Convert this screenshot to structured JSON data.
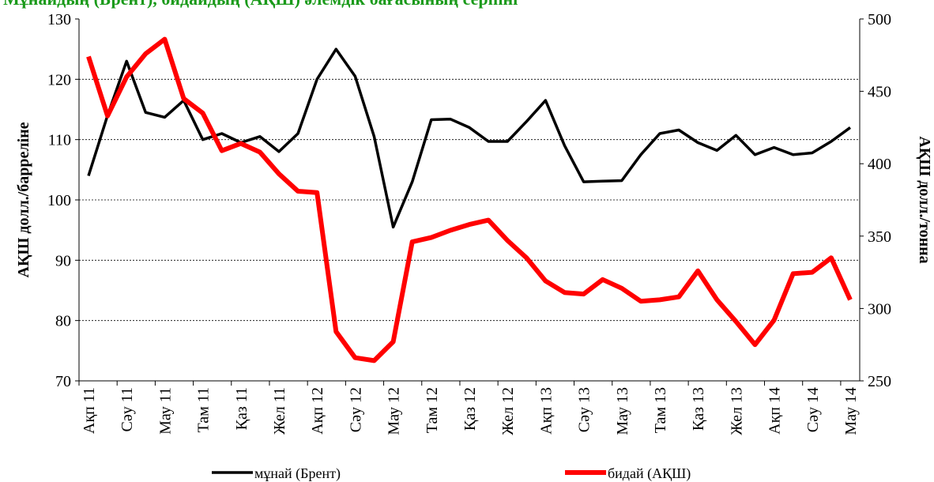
{
  "chart_data": {
    "type": "line",
    "title": "Мұнайдың (Брент), бидайдың (АҚШ) әлемдік бағасының серпіні",
    "ylabel": "АҚШ долл./барреліне",
    "y2label": "АҚШ долл./тонна",
    "categories": [
      "Ақп 11",
      null,
      "Сәу 11",
      null,
      "Мау 11",
      null,
      "Там 11",
      null,
      "Қаз 11",
      null,
      "Жел 11",
      null,
      "Ақп 12",
      null,
      "Сәу 12",
      null,
      "Мау 12",
      null,
      "Там 12",
      null,
      "Қаз 12",
      null,
      "Жел 12",
      null,
      "Ақп 13",
      null,
      "Сәу 13",
      null,
      "Мау 13",
      null,
      "Там 13",
      null,
      "Қаз 13",
      null,
      "Жел 13",
      null,
      "Ақп 14",
      null,
      "Сәу 14",
      null,
      "Мау 14"
    ],
    "series": [
      {
        "name": "мұнай (Брент)",
        "color": "#000000",
        "axis": "y",
        "values": [
          104,
          114,
          123,
          114.5,
          113.7,
          116.5,
          110,
          111,
          109.5,
          110.5,
          108,
          111,
          120,
          125,
          120.5,
          110.5,
          95.5,
          103,
          113.3,
          113.4,
          112,
          109.7,
          109.7,
          113,
          116.5,
          109,
          103,
          103.1,
          103.2,
          107.5,
          111,
          111.6,
          109.5,
          108.2,
          110.7,
          107.5,
          108.7,
          107.5,
          107.8,
          109.7,
          112
        ]
      },
      {
        "name": "бидай (АҚШ)",
        "color": "#ff0000",
        "axis": "y2",
        "values": [
          474,
          433,
          460,
          476,
          486,
          445,
          435,
          409,
          414,
          408,
          393,
          381,
          380,
          284,
          266,
          264,
          277,
          346,
          349,
          354,
          358,
          361,
          347,
          335,
          319,
          311,
          310,
          320,
          314,
          305,
          306,
          308,
          326,
          306,
          291,
          275,
          292,
          324,
          325,
          335,
          306
        ]
      }
    ],
    "ylim": [
      70,
      130
    ],
    "yticks": [
      70,
      80,
      90,
      100,
      110,
      120,
      130
    ],
    "y2lim": [
      250,
      500
    ],
    "y2ticks": [
      250,
      300,
      350,
      400,
      450,
      500
    ],
    "grid": true,
    "legend": "bottom"
  }
}
